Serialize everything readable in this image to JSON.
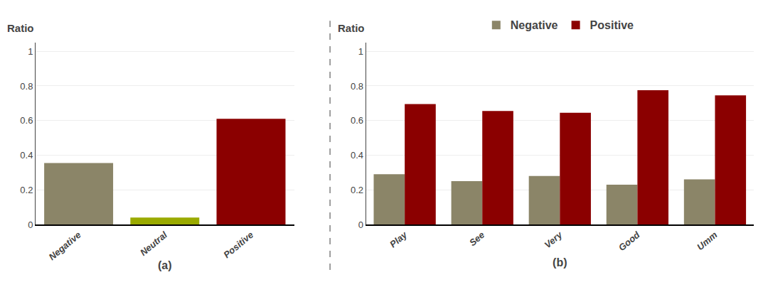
{
  "chart_data": [
    {
      "type": "bar",
      "ylabel": "Ratio",
      "xlabel": "(a)",
      "categories": [
        "Negative",
        "Neutral",
        "Positive"
      ],
      "values": [
        0.355,
        0.04,
        0.61
      ],
      "colors": [
        "#8B8568",
        "#9aaa00",
        "#8B0000"
      ],
      "ylim": [
        0,
        1.05
      ],
      "yticks": [
        0,
        0.2,
        0.4,
        0.6,
        0.8,
        1
      ],
      "grid": true
    },
    {
      "type": "bar",
      "ylabel": "Ratio",
      "xlabel": "(b)",
      "categories": [
        "Play",
        "See",
        "Very",
        "Good",
        "Umm"
      ],
      "series": [
        {
          "name": "Negative",
          "color": "#8B8568",
          "values": [
            0.29,
            0.25,
            0.28,
            0.23,
            0.26
          ]
        },
        {
          "name": "Positive",
          "color": "#8B0000",
          "values": [
            0.695,
            0.655,
            0.645,
            0.775,
            0.745
          ]
        }
      ],
      "ylim": [
        0,
        1.05
      ],
      "yticks": [
        0,
        0.2,
        0.4,
        0.6,
        0.8,
        1
      ],
      "grid": true,
      "legend": "top"
    }
  ]
}
